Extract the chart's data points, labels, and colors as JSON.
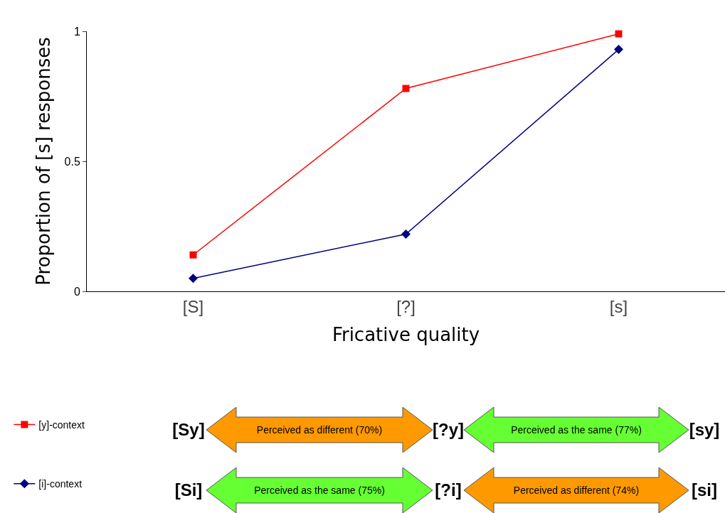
{
  "chart_data": {
    "type": "line",
    "xlabel": "Fricative quality",
    "ylabel": "Proportion of [s] responses",
    "categories": [
      "[S]",
      "[?]",
      "[s]"
    ],
    "series": [
      {
        "name": "[y]-context",
        "color": "#ff0000",
        "marker": "square",
        "values": [
          0.14,
          0.78,
          0.99
        ]
      },
      {
        "name": "[i]-context",
        "color": "#000080",
        "marker": "diamond",
        "values": [
          0.05,
          0.22,
          0.93
        ]
      }
    ],
    "ylim": [
      0,
      1
    ],
    "yticks": [
      0,
      0.5,
      1
    ],
    "grid": false,
    "legend": "bottom left",
    "line_style": "solid",
    "annotations": [
      "[Sy]",
      "Perceived as different (70%)",
      "[?y]",
      "Perceived as the same (77%)",
      "[sy]",
      "[Si]",
      "Perceived as the same (75%)",
      "[?i]",
      "Perceived as different (74%)",
      "[si]"
    ]
  }
}
